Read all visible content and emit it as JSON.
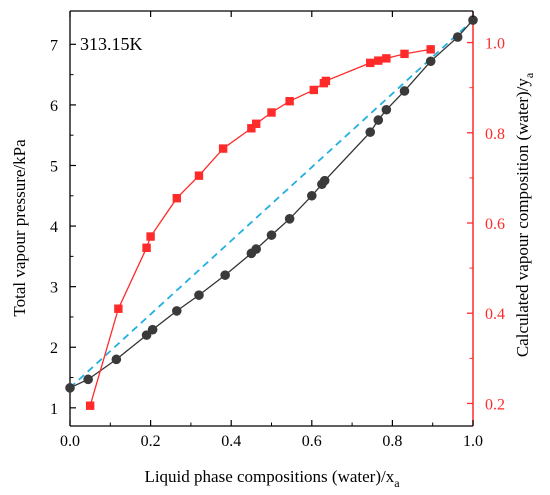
{
  "chart_data": {
    "type": "line",
    "annotation": "313.15K",
    "xlabel": "Liquid phase compositions (water)/x",
    "xlabel_sub": "a",
    "ylabel": "Total vapour pressure/kPa",
    "y2label": "Calculated vapour composition (water)/y",
    "y2label_sub": "a",
    "xlim": [
      0,
      1.0
    ],
    "ylim": [
      0.7,
      7.55
    ],
    "y2lim": [
      0.15,
      1.07
    ],
    "x_ticks": [
      "0.0",
      "0.2",
      "0.4",
      "0.6",
      "0.8",
      "1.0"
    ],
    "y_ticks": [
      "1",
      "2",
      "3",
      "4",
      "5",
      "6",
      "7"
    ],
    "y2_ticks": [
      "0.2",
      "0.4",
      "0.6",
      "0.8",
      "1.0"
    ],
    "colors": {
      "pressure": "#333333",
      "vapour": "#ff2a2a",
      "raoult": "#22b0e0",
      "axis_right": "#ff2a2a",
      "axis": "#000000"
    },
    "series": [
      {
        "axis": "left",
        "marker": "circle",
        "x": [
          0.0,
          0.045,
          0.115,
          0.19,
          0.205,
          0.265,
          0.32,
          0.385,
          0.45,
          0.462,
          0.5,
          0.545,
          0.6,
          0.625,
          0.632,
          0.745,
          0.765,
          0.785,
          0.83,
          0.895,
          0.962,
          1.0
        ],
        "y": [
          1.33,
          1.47,
          1.8,
          2.2,
          2.29,
          2.6,
          2.86,
          3.19,
          3.55,
          3.62,
          3.85,
          4.12,
          4.5,
          4.69,
          4.75,
          5.55,
          5.75,
          5.92,
          6.23,
          6.72,
          7.12,
          7.4
        ]
      },
      {
        "axis": "right",
        "marker": "square",
        "x": [
          0.05,
          0.12,
          0.19,
          0.2,
          0.265,
          0.32,
          0.38,
          0.45,
          0.462,
          0.5,
          0.545,
          0.605,
          0.63,
          0.635,
          0.745,
          0.765,
          0.785,
          0.83,
          0.895
        ],
        "y": [
          0.195,
          0.41,
          0.545,
          0.57,
          0.655,
          0.705,
          0.765,
          0.81,
          0.82,
          0.845,
          0.87,
          0.895,
          0.91,
          0.915,
          0.955,
          0.96,
          0.965,
          0.975,
          0.985
        ]
      },
      {
        "axis": "left",
        "style": "dashed",
        "x": [
          0.0,
          1.0
        ],
        "y": [
          1.33,
          7.4
        ]
      }
    ]
  }
}
